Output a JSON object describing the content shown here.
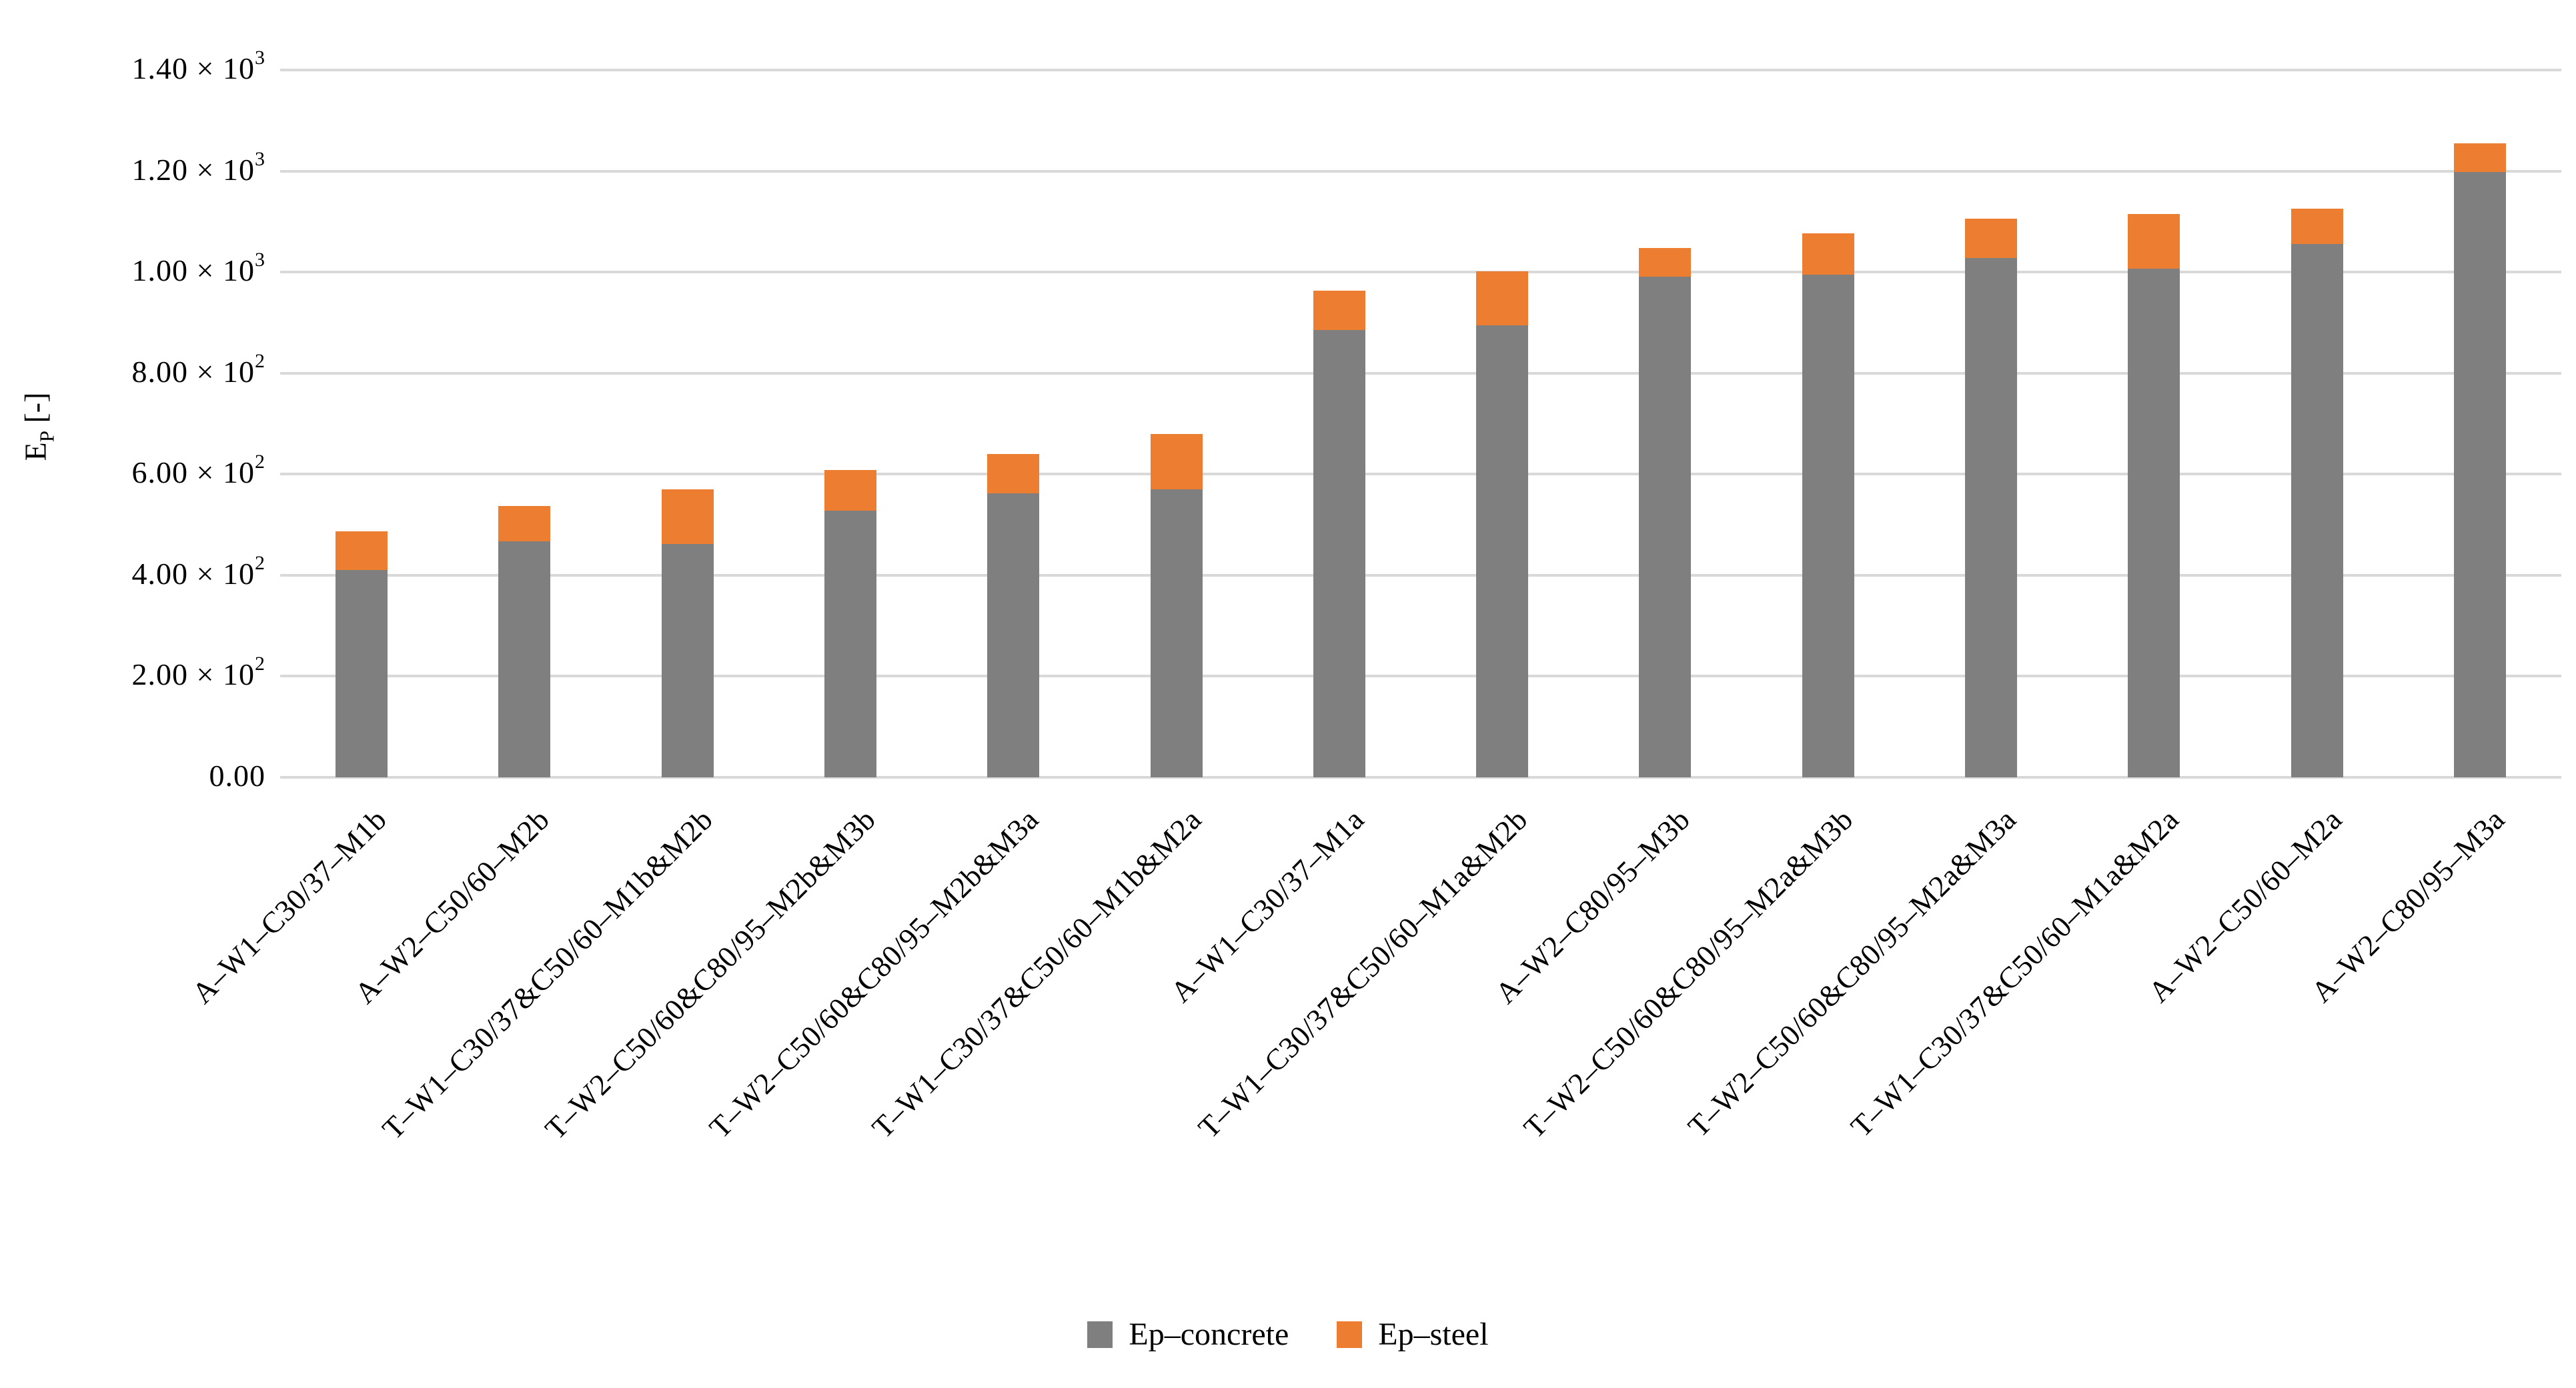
{
  "chart_data": {
    "type": "bar",
    "stacked": true,
    "title": "",
    "ylabel": "Ep [-]",
    "ylabel_parts": {
      "base": "E",
      "sub": "P",
      "suffix": " [-]"
    },
    "ylim": [
      0,
      1400
    ],
    "ytick_step": 200,
    "grid": true,
    "legend_position": "bottom",
    "y_ticks": [
      {
        "label": "0.00",
        "sup": ""
      },
      {
        "label": "2.00 × 10",
        "sup": "2"
      },
      {
        "label": "4.00 × 10",
        "sup": "2"
      },
      {
        "label": "6.00 × 10",
        "sup": "2"
      },
      {
        "label": "8.00 × 10",
        "sup": "2"
      },
      {
        "label": "1.00 × 10",
        "sup": "3"
      },
      {
        "label": "1.20 × 10",
        "sup": "3"
      },
      {
        "label": "1.40 × 10",
        "sup": "3"
      }
    ],
    "categories": [
      "A–W1–C30/37–M1b",
      "A–W2–C50/60–M2b",
      "T–W1–C30/37&C50/60–M1b&M2b",
      "T–W2–C50/60&C80/95–M2b&M3b",
      "T–W2–C50/60&C80/95–M2b&M3a",
      "T–W1–C30/37&C50/60–M1b&M2a",
      "A–W1–C30/37–M1a",
      "T–W1–C30/37&C50/60–M1a&M2b",
      "A–W2–C80/95–M3b",
      "T–W2–C50/60&C80/95–M2a&M3b",
      "T–W2–C50/60&C80/95–M2a&M3a",
      "T–W1–C30/37&C50/60–M1a&M2a",
      "A–W2–C50/60–M2a",
      "A–W2–C80/95–M3a"
    ],
    "series": [
      {
        "name": "Ep–concrete",
        "color": "#7F7F7F",
        "values": [
          410,
          467,
          462,
          528,
          562,
          570,
          886,
          894,
          991,
          995,
          1028,
          1007,
          1056,
          1198
        ]
      },
      {
        "name": "Ep–steel",
        "color": "#ED7D31",
        "values": [
          77,
          70,
          108,
          80,
          78,
          110,
          77,
          108,
          57,
          82,
          78,
          108,
          69,
          57
        ]
      }
    ]
  },
  "colors": {
    "gridline": "#D9D9D9",
    "text": "#000000",
    "background": "#FFFFFF"
  }
}
